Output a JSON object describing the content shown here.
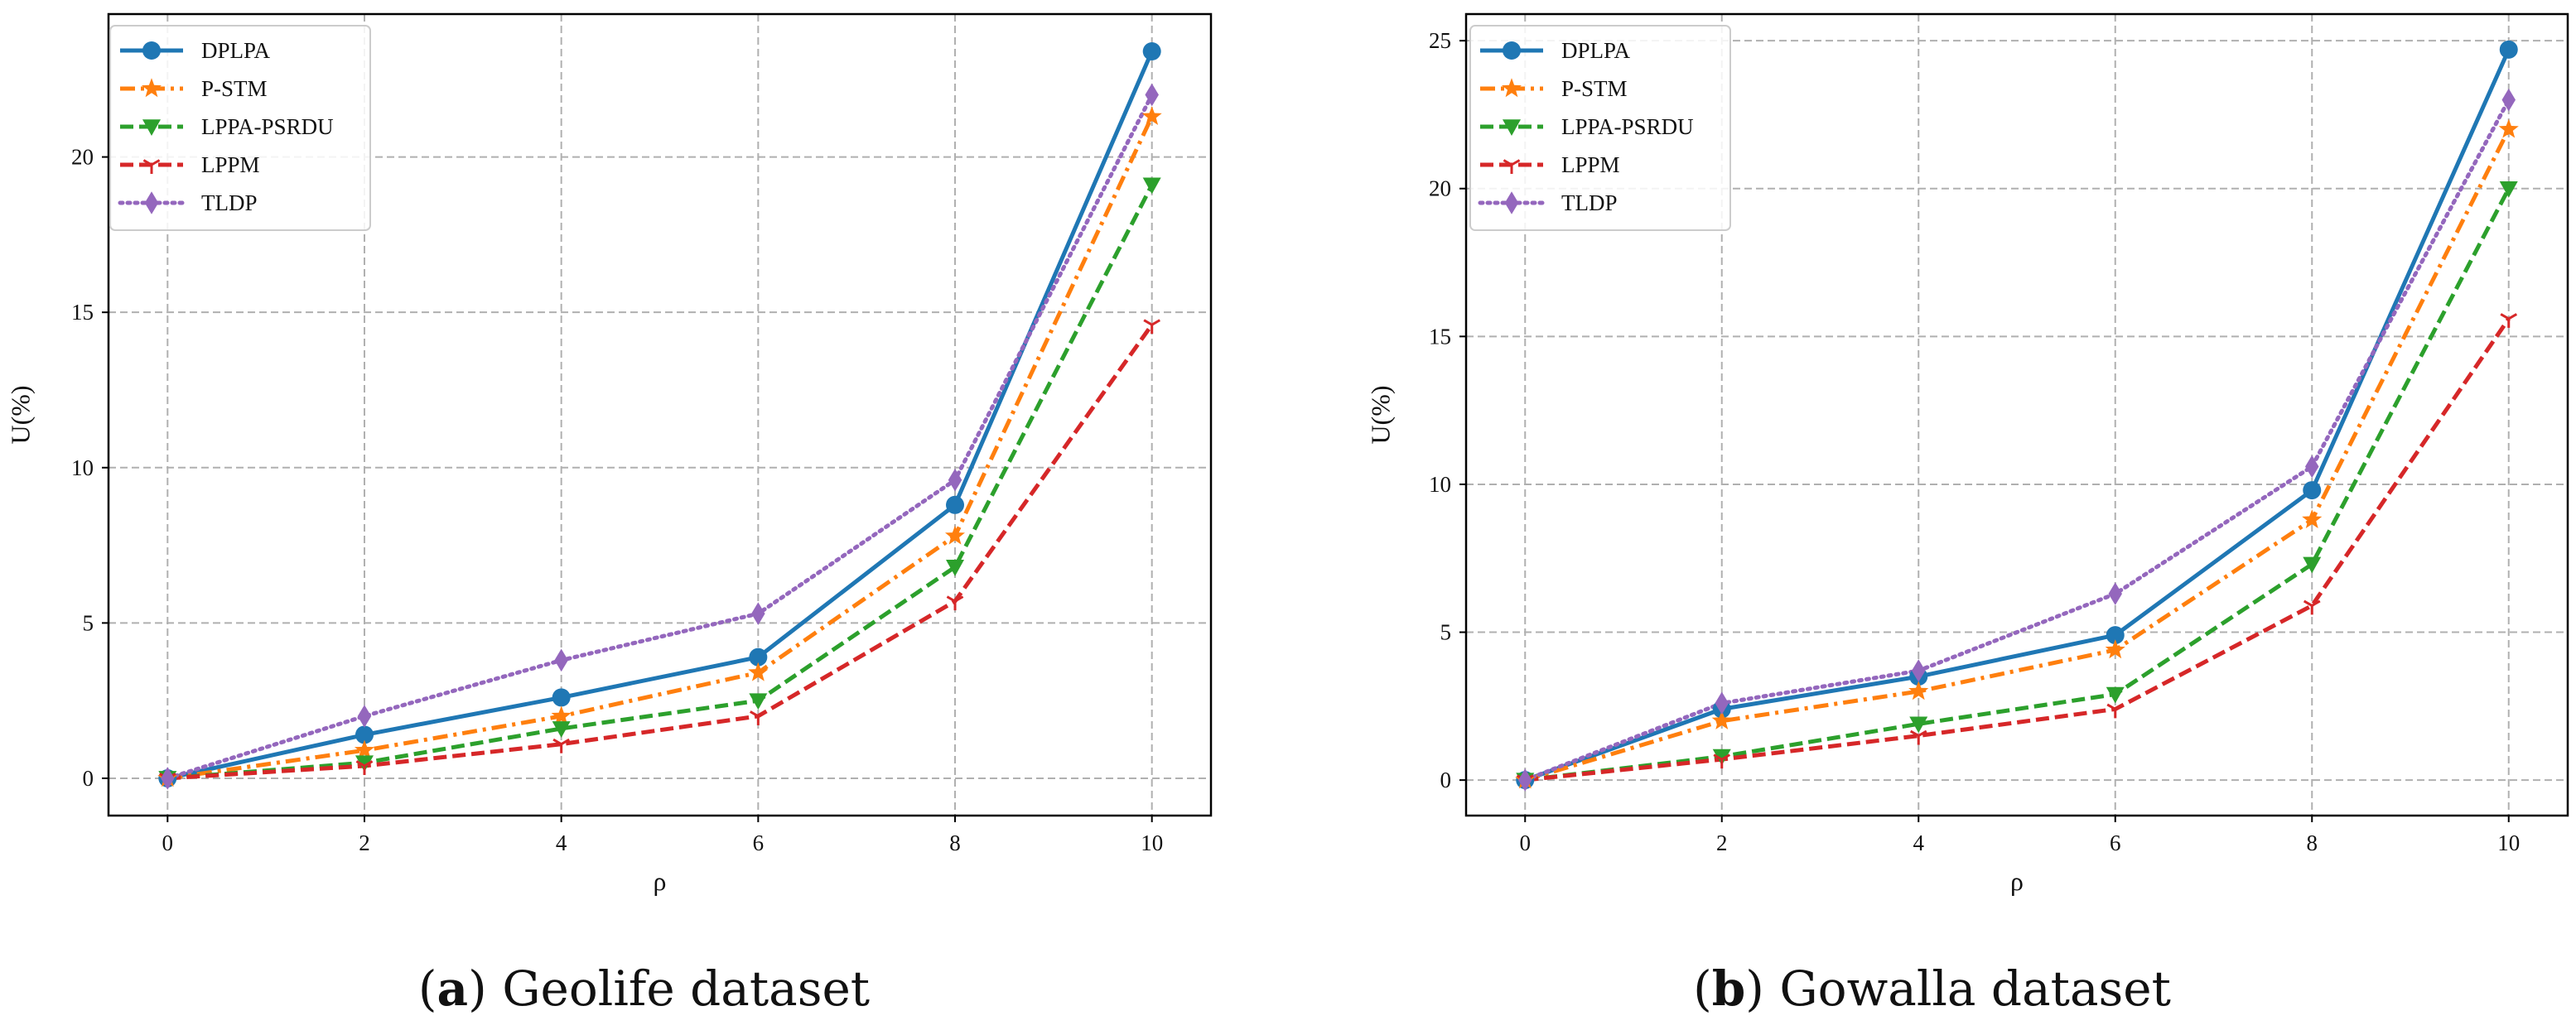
{
  "chart_data": [
    {
      "type": "line",
      "caption_letter": "a",
      "caption_text": "Geolife dataset",
      "xlabel": "ρ",
      "ylabel": "U(%)",
      "x": [
        0,
        2,
        4,
        6,
        8,
        10
      ],
      "xticks": [
        0,
        2,
        4,
        6,
        8,
        10
      ],
      "yticks": [
        0,
        5,
        10,
        15,
        20
      ],
      "xlim": [
        -0.6,
        10.6
      ],
      "ylim": [
        -1.2,
        24.6
      ],
      "grid": true,
      "legend_position": "top-left",
      "series": [
        {
          "name": "DPLPA",
          "values": [
            0,
            1.4,
            2.6,
            3.9,
            8.8,
            23.4
          ],
          "color": "#1f77b4",
          "marker": "circle",
          "dash": "solid"
        },
        {
          "name": "P-STM",
          "values": [
            0,
            0.9,
            2.0,
            3.4,
            7.8,
            21.3
          ],
          "color": "#ff7f0e",
          "marker": "star",
          "dash": "dashdot"
        },
        {
          "name": "LPPA-PSRDU",
          "values": [
            0,
            0.5,
            1.6,
            2.5,
            6.8,
            19.1
          ],
          "color": "#2ca02c",
          "marker": "triangle-down",
          "dash": "dashed"
        },
        {
          "name": "LPPM",
          "values": [
            0,
            0.4,
            1.1,
            2.0,
            5.7,
            14.6
          ],
          "color": "#d62728",
          "marker": "tri",
          "dash": "dashed"
        },
        {
          "name": "TLDP",
          "values": [
            0,
            2.0,
            3.8,
            5.3,
            9.6,
            22.0
          ],
          "color": "#9467bd",
          "marker": "diamond",
          "dash": "dotted"
        }
      ]
    },
    {
      "type": "line",
      "caption_letter": "b",
      "caption_text": "Gowalla dataset",
      "xlabel": "ρ",
      "ylabel": "U(%)",
      "x": [
        0,
        2,
        4,
        6,
        8,
        10
      ],
      "xticks": [
        0,
        2,
        4,
        6,
        8,
        10
      ],
      "yticks": [
        0,
        5,
        10,
        15,
        20,
        25
      ],
      "xlim": [
        -0.6,
        10.6
      ],
      "ylim": [
        -1.2,
        25.9
      ],
      "grid": true,
      "legend_position": "top-left",
      "series": [
        {
          "name": "DPLPA",
          "values": [
            0,
            2.4,
            3.5,
            4.9,
            9.8,
            24.7
          ],
          "color": "#1f77b4",
          "marker": "circle",
          "dash": "solid"
        },
        {
          "name": "P-STM",
          "values": [
            0,
            2.0,
            3.0,
            4.4,
            8.8,
            22.0
          ],
          "color": "#ff7f0e",
          "marker": "star",
          "dash": "dashdot"
        },
        {
          "name": "LPPA-PSRDU",
          "values": [
            0,
            0.8,
            1.9,
            2.9,
            7.3,
            20.0
          ],
          "color": "#2ca02c",
          "marker": "triangle-down",
          "dash": "dashed"
        },
        {
          "name": "LPPM",
          "values": [
            0,
            0.7,
            1.5,
            2.4,
            5.9,
            15.6
          ],
          "color": "#d62728",
          "marker": "tri",
          "dash": "dashed"
        },
        {
          "name": "TLDP",
          "values": [
            0,
            2.6,
            3.7,
            6.3,
            10.6,
            23.0
          ],
          "color": "#9467bd",
          "marker": "diamond",
          "dash": "dotted"
        }
      ]
    }
  ]
}
